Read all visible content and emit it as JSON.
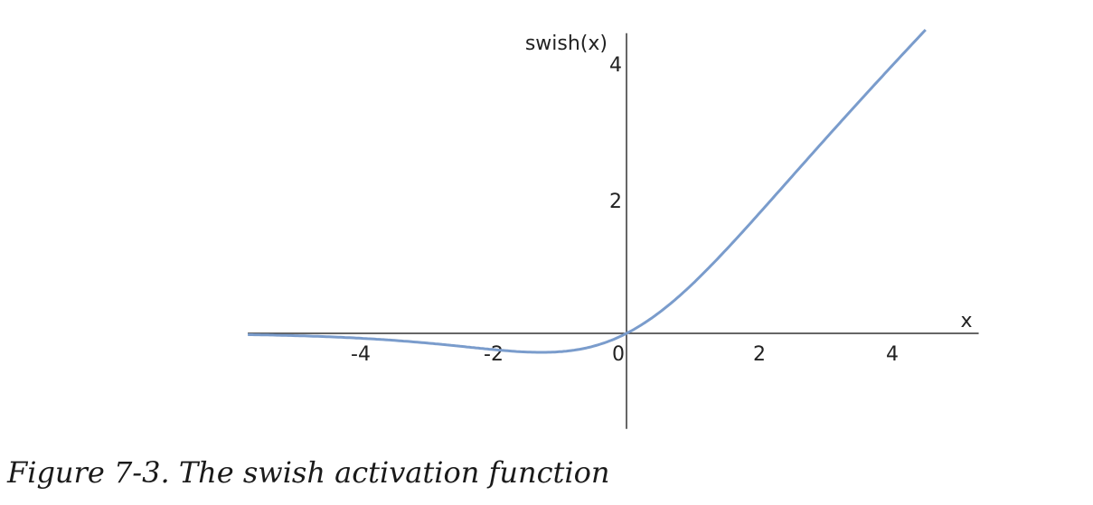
{
  "chart_data": {
    "type": "line",
    "function": "swish(x) = x * sigmoid(x)",
    "title": "",
    "xlabel": "x",
    "ylabel": "swish(x)",
    "xlim": [
      -5.7,
      5.3
    ],
    "ylim": [
      -1.4,
      4.4
    ],
    "xticks": [
      -4,
      -2,
      0,
      2,
      4
    ],
    "yticks": [
      2,
      4
    ],
    "x_tick_labels": [
      "-4",
      "-2",
      "0",
      "2",
      "4"
    ],
    "y_tick_labels": [
      "2",
      "4"
    ],
    "series": [
      {
        "color": "#7a9ccc",
        "x": [
          -5.7,
          -5.0,
          -4.5,
          -4.0,
          -3.5,
          -3.0,
          -2.5,
          -2.0,
          -1.5,
          -1.28,
          -1.0,
          -0.5,
          0.0,
          0.5,
          1.0,
          1.5,
          2.0,
          2.5,
          3.0,
          3.5,
          4.0,
          4.5
        ],
        "y": [
          -0.019,
          -0.033,
          -0.049,
          -0.072,
          -0.102,
          -0.142,
          -0.189,
          -0.238,
          -0.274,
          -0.278,
          -0.269,
          -0.189,
          0.0,
          0.311,
          0.731,
          1.226,
          1.762,
          2.311,
          2.858,
          3.396,
          3.928,
          4.451
        ]
      }
    ],
    "grid": false,
    "legend": "none"
  },
  "caption": "Figure 7-3. The swish activation function"
}
